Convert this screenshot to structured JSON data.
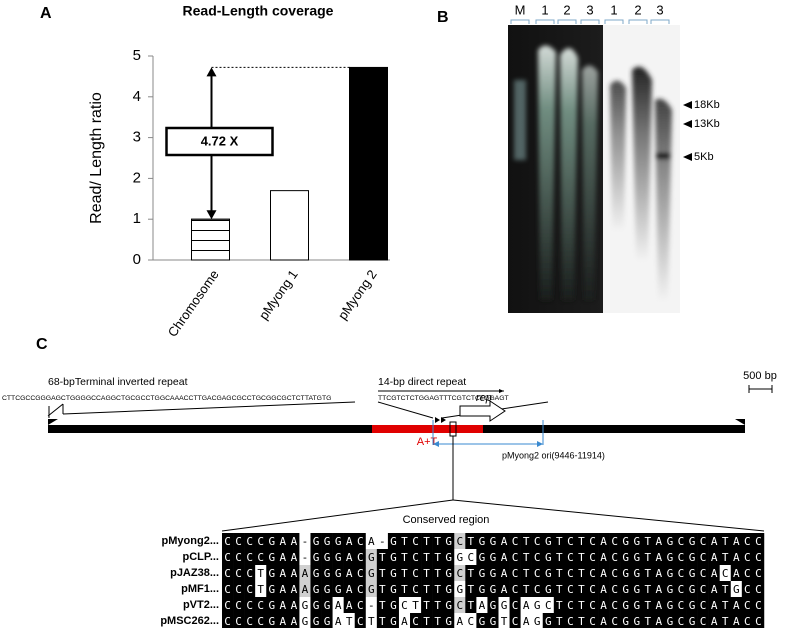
{
  "chart_data": {
    "type": "bar",
    "panel_label": "A",
    "title": "Read-Length coverage",
    "y_label": "Read/ Length ratio",
    "categories": [
      "Chromosome",
      "pMyong 1",
      "pMyong 2"
    ],
    "values": [
      1,
      1.7,
      4.72
    ],
    "colors": [
      "#ffffff",
      "#ffffff",
      "#000000"
    ],
    "hatch": [
      true,
      false,
      false
    ],
    "annotation": "4.72 X",
    "ylim": [
      0,
      5
    ],
    "yticks": [
      0,
      1,
      2,
      3,
      4,
      5
    ],
    "grid": false
  },
  "panel_b": {
    "label": "B",
    "lane_labels": [
      "M",
      "1",
      "2",
      "3",
      "1",
      "2",
      "3"
    ],
    "size_markers": [
      "18Kb",
      "13Kb",
      "5Kb"
    ]
  },
  "panel_c": {
    "label": "C",
    "tir_title": "68-bpTerminal inverted repeat",
    "tir_sequence": "CTTCGCCGGGAGCTGGGGCCAGGCTGCGCCTGGCAAACCTTGACGAGCGCCTGCGGCGCTCTTATGTG",
    "dr_title": "14-bp direct repeat",
    "dr_sequence": "TTCGTCTCTGGAGTTTCGTCTCTGGAGT",
    "scale": "500 bp",
    "gene": "rep",
    "at_label": "A+T",
    "ori_label": "pMyong2 ori(9446-11914)",
    "alignment": {
      "title": "Conserved region",
      "rows": [
        {
          "name": "pMyong2...",
          "sequence": "CCCCGAA-GGGACA-GTCTTGCTGGACTCGTCTCACGGTAGCGCATACC"
        },
        {
          "name": "pCLP...",
          "sequence": "CCCCGAA-GGGACGTGTCTTGGCGGACTCGTCTCACGGTAGCGCATACC"
        },
        {
          "name": "pJAZ38...",
          "sequence": "CCCTGAAAGGGACGTGTCTTGCTGGACTCGTCTCACGGTAGCGCACACC"
        },
        {
          "name": "pMF1...",
          "sequence": "CCCTGAAAGGGACGTGTCTTGGTGGACTCGTCTCACGGTAGCGCATGCC"
        },
        {
          "name": "pVT2...",
          "sequence": "CCCCGAAGGGAAC-TGCTTTGCTAGGCAGCTCTCACGGTAGCGCATACC"
        },
        {
          "name": "pMSC262...",
          "sequence": "CCCCGAAGGGATCTTGACTTGACGGTCAGGTCTCACGGTAGCGCATACC"
        }
      ]
    }
  }
}
